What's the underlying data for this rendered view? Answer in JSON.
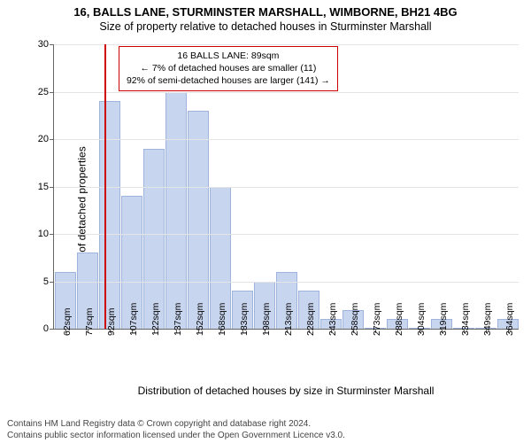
{
  "title": "16, BALLS LANE, STURMINSTER MARSHALL, WIMBORNE, BH21 4BG",
  "subtitle": "Size of property relative to detached houses in Sturminster Marshall",
  "chart": {
    "type": "histogram",
    "ylabel": "Number of detached properties",
    "xlabel": "Distribution of detached houses by size in Sturminster Marshall",
    "ylim": [
      0,
      30
    ],
    "ytick_step": 5,
    "background_color": "#ffffff",
    "grid_color": "#e4e4e4",
    "axis_color": "#666666",
    "bar_fill": "#c8d5ef",
    "bar_stroke": "#9fb4dd",
    "tick_fontsize": 11,
    "label_fontsize": 12,
    "marker": {
      "x_value": 89,
      "color": "#cc0000"
    },
    "annotation": {
      "lines": [
        "16 BALLS LANE: 89sqm",
        "← 7% of detached houses are smaller (11)",
        "92% of semi-detached houses are larger (141) →"
      ],
      "border_color": "#cc0000",
      "bg_color": "#ffffff",
      "fontsize": 10.5
    },
    "bins": [
      {
        "label": "62sqm",
        "value": 6
      },
      {
        "label": "77sqm",
        "value": 8
      },
      {
        "label": "92sqm",
        "value": 24
      },
      {
        "label": "107sqm",
        "value": 14
      },
      {
        "label": "122sqm",
        "value": 19
      },
      {
        "label": "137sqm",
        "value": 25
      },
      {
        "label": "152sqm",
        "value": 23
      },
      {
        "label": "168sqm",
        "value": 15
      },
      {
        "label": "183sqm",
        "value": 4
      },
      {
        "label": "198sqm",
        "value": 5
      },
      {
        "label": "213sqm",
        "value": 6
      },
      {
        "label": "228sqm",
        "value": 4
      },
      {
        "label": "243sqm",
        "value": 1
      },
      {
        "label": "258sqm",
        "value": 2
      },
      {
        "label": "273sqm",
        "value": 0
      },
      {
        "label": "288sqm",
        "value": 1
      },
      {
        "label": "304sqm",
        "value": 0
      },
      {
        "label": "319sqm",
        "value": 1
      },
      {
        "label": "334sqm",
        "value": 0
      },
      {
        "label": "349sqm",
        "value": 0
      },
      {
        "label": "364sqm",
        "value": 1
      }
    ]
  },
  "footer": {
    "line1": "Contains HM Land Registry data © Crown copyright and database right 2024.",
    "line2": "Contains public sector information licensed under the Open Government Licence v3.0."
  }
}
